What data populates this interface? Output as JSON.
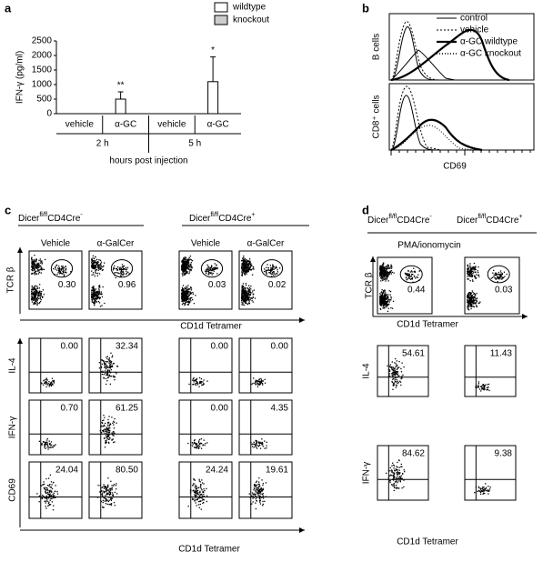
{
  "chart_data": [
    {
      "type": "bar",
      "panel_label": "a",
      "ylabel": "IFN-γ (pg/ml)",
      "ylim": [
        0,
        2500
      ],
      "yticks": [
        0,
        500,
        1000,
        1500,
        2000,
        2500
      ],
      "categories": [
        "vehicle",
        "α-GC",
        "vehicle",
        "α-GC"
      ],
      "groups": [
        "2 h",
        "5 h"
      ],
      "xlabel": "hours post injection",
      "series": [
        {
          "name": "wildtype",
          "color": "#ffffff",
          "values": [
            0,
            500,
            0,
            1100
          ],
          "errors": [
            0,
            250,
            0,
            850
          ],
          "annotations": [
            null,
            "**",
            null,
            "*"
          ]
        },
        {
          "name": "knockout",
          "color": "#cccccc",
          "values": [
            0,
            0,
            0,
            0
          ]
        }
      ]
    }
  ],
  "panel_b": {
    "label": "b",
    "legend": [
      "control",
      "vehicle",
      "α-GC wildtype",
      "α-GC knockout"
    ],
    "rows": [
      "B cells",
      "CD8⁺ cells"
    ],
    "xlabel": "CD69"
  },
  "panel_c": {
    "label": "c",
    "headers": [
      {
        "gene": "Dicer",
        "sup": "fl/fl",
        "name": "CD4Cre",
        "sign": "-"
      },
      {
        "gene": "Dicer",
        "sup": "fl/fl",
        "name": "CD4Cre",
        "sign": "+"
      }
    ],
    "columns": [
      "Vehicle",
      "α-GalCer",
      "Vehicle",
      "α-GalCer"
    ],
    "rows": [
      {
        "ylabel": "TCR β",
        "values": [
          "0.30",
          "0.96",
          "0.03",
          "0.02"
        ]
      },
      {
        "ylabel": "IL-4",
        "values": [
          "0.00",
          "32.34",
          "0.00",
          "0.00"
        ]
      },
      {
        "ylabel": "IFN-γ",
        "values": [
          "0.70",
          "61.25",
          "0.00",
          "4.35"
        ]
      },
      {
        "ylabel": "CD69",
        "values": [
          "24.04",
          "80.50",
          "24.24",
          "19.61"
        ]
      }
    ],
    "xlabel_top": "CD1d Tetramer",
    "xlabel_bottom": "CD1d Tetramer"
  },
  "panel_d": {
    "label": "d",
    "headers": [
      {
        "gene": "Dicer",
        "sup": "fl/fl",
        "name": "CD4Cre",
        "sign": "-"
      },
      {
        "gene": "Dicer",
        "sup": "fl/fl",
        "name": "CD4Cre",
        "sign": "+"
      }
    ],
    "subtitle": "PMA/ionomycin",
    "rows": [
      {
        "ylabel": "TCR β",
        "values": [
          "0.44",
          "0.03"
        ]
      },
      {
        "ylabel": "IL-4",
        "values": [
          "54.61",
          "11.43"
        ]
      },
      {
        "ylabel": "IFN-γ",
        "values": [
          "84.62",
          "9.38"
        ]
      }
    ],
    "xlabel_top": "CD1d Tetramer",
    "xlabel_bottom": "CD1d Tetramer"
  }
}
